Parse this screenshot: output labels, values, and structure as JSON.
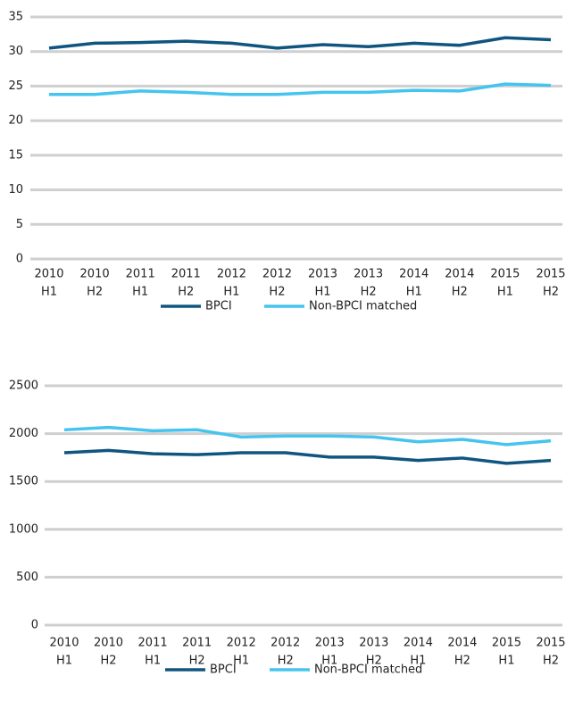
{
  "chart_data": [
    {
      "type": "line",
      "categories": [
        [
          "2010",
          "H1"
        ],
        [
          "2010",
          "H2"
        ],
        [
          "2011",
          "H1"
        ],
        [
          "2011",
          "H2"
        ],
        [
          "2012",
          "H1"
        ],
        [
          "2012",
          "H2"
        ],
        [
          "2013",
          "H1"
        ],
        [
          "2013",
          "H2"
        ],
        [
          "2014",
          "H1"
        ],
        [
          "2014",
          "H2"
        ],
        [
          "2015",
          "H1"
        ],
        [
          "2015",
          "H2"
        ]
      ],
      "series": [
        {
          "name": "BPCI",
          "color": "#10557f",
          "values": [
            30.5,
            31.2,
            31.3,
            31.5,
            31.2,
            30.5,
            31.0,
            30.7,
            31.2,
            30.9,
            32.0,
            31.7
          ]
        },
        {
          "name": "Non-BPCI matched",
          "color": "#45c4ef",
          "values": [
            23.8,
            23.8,
            24.3,
            24.1,
            23.8,
            23.8,
            24.1,
            24.1,
            24.4,
            24.3,
            25.3,
            25.1
          ]
        }
      ],
      "ylim": [
        0,
        35
      ],
      "yticks": [
        0,
        5,
        10,
        15,
        20,
        25,
        30,
        35
      ],
      "grid": true,
      "legend": "bottom"
    },
    {
      "type": "line",
      "categories": [
        [
          "2010",
          "H1"
        ],
        [
          "2010",
          "H2"
        ],
        [
          "2011",
          "H1"
        ],
        [
          "2011",
          "H2"
        ],
        [
          "2012",
          "H1"
        ],
        [
          "2012",
          "H2"
        ],
        [
          "2013",
          "H1"
        ],
        [
          "2013",
          "H2"
        ],
        [
          "2014",
          "H1"
        ],
        [
          "2014",
          "H2"
        ],
        [
          "2015",
          "H1"
        ],
        [
          "2015",
          "H2"
        ]
      ],
      "series": [
        {
          "name": "BPCI",
          "color": "#10557f",
          "values": [
            1800,
            1825,
            1790,
            1780,
            1800,
            1800,
            1755,
            1755,
            1720,
            1745,
            1690,
            1720
          ]
        },
        {
          "name": "Non-BPCI matched",
          "color": "#45c4ef",
          "values": [
            2040,
            2065,
            2030,
            2040,
            1965,
            1975,
            1975,
            1965,
            1915,
            1940,
            1885,
            1925
          ]
        }
      ],
      "ylim": [
        0,
        2500
      ],
      "yticks": [
        0,
        500,
        1000,
        1500,
        2000,
        2500
      ],
      "grid": true,
      "legend": "bottom"
    }
  ]
}
